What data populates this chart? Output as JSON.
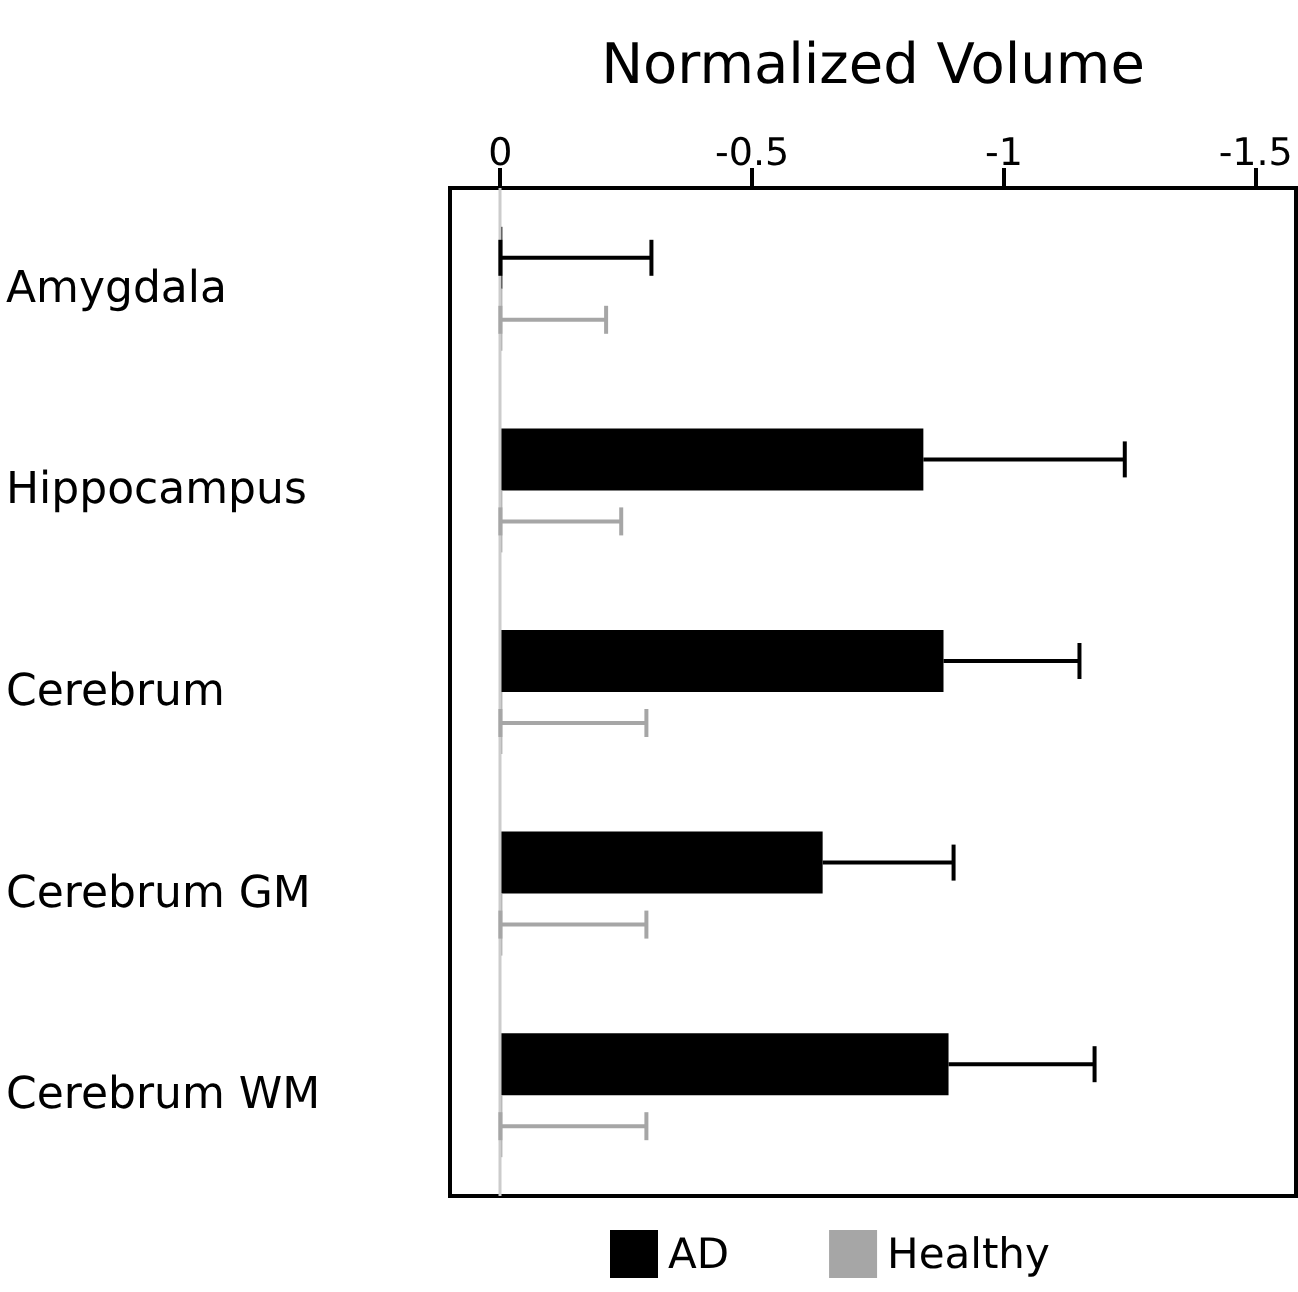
{
  "chart_data": {
    "type": "bar",
    "orientation": "horizontal",
    "xlabel": "Normalized Volume",
    "categories": [
      "Amygdala",
      "Hippocampus",
      "Cerebrum",
      "Cerebrum GM",
      "Cerebrum WM"
    ],
    "series": [
      {
        "name": "AD",
        "color": "#000000",
        "values": [
          0,
          -0.84,
          -0.88,
          -0.64,
          -0.89
        ],
        "errors": [
          [
            -0.3,
            0
          ],
          [
            -1.24,
            -0.84
          ],
          [
            -1.15,
            -0.88
          ],
          [
            -0.9,
            -0.64
          ],
          [
            -1.18,
            -0.89
          ]
        ]
      },
      {
        "name": "Healthy",
        "color": "#a6a6a6",
        "values": [
          0,
          0,
          0,
          0,
          0
        ],
        "errors": [
          [
            -0.21,
            0
          ],
          [
            -0.24,
            0
          ],
          [
            -0.29,
            0
          ],
          [
            -0.29,
            0
          ],
          [
            -0.29,
            0
          ]
        ]
      }
    ],
    "xlim": [
      0.1,
      -1.58
    ],
    "xticks": [
      0,
      {
        "value": -0.5,
        "label": "-0.5"
      },
      -1,
      {
        "value": -1.5,
        "label": "-1.5"
      }
    ],
    "ref_lines": [
      {
        "axis": "x",
        "value": 0,
        "color": "#cccccc"
      }
    ],
    "grid": false,
    "legend": "bottom"
  }
}
